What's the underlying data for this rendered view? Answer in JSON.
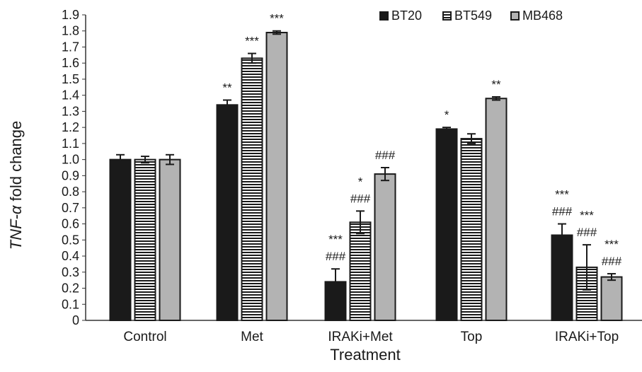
{
  "chart_data": {
    "type": "bar",
    "title": "",
    "xlabel": "Treatment",
    "ylabel": "TNF-α fold change",
    "ylabel_prefix": "TNF-α",
    "ylabel_suffix": " fold change",
    "ylim": [
      0,
      1.9
    ],
    "ytick_step": 0.1,
    "grid": false,
    "legend_position": "top-right",
    "categories": [
      "Control",
      "Met",
      "IRAKi+Met",
      "Top",
      "IRAKi+Top"
    ],
    "series": [
      {
        "name": "BT20",
        "pattern": "solid",
        "color": "#1a1a1a",
        "values": [
          1.0,
          1.34,
          0.24,
          1.19,
          0.53
        ],
        "errors": [
          0.03,
          0.03,
          0.08,
          0.01,
          0.07
        ],
        "annotations": [
          [],
          [
            "**"
          ],
          [
            "***",
            "###"
          ],
          [
            "*"
          ],
          [
            "***",
            "###"
          ]
        ]
      },
      {
        "name": "BT549",
        "pattern": "horizontal-stripes",
        "color": "#1a1a1a",
        "values": [
          1.0,
          1.63,
          0.61,
          1.13,
          0.33
        ],
        "errors": [
          0.02,
          0.03,
          0.07,
          0.03,
          0.14
        ],
        "annotations": [
          [],
          [
            "***"
          ],
          [
            "*",
            "###"
          ],
          [],
          [
            "***",
            "###"
          ]
        ]
      },
      {
        "name": "MB468",
        "pattern": "gray-fill",
        "color": "#b3b3b3",
        "values": [
          1.0,
          1.79,
          0.91,
          1.38,
          0.27
        ],
        "errors": [
          0.03,
          0.01,
          0.04,
          0.01,
          0.02
        ],
        "annotations": [
          [],
          [
            "***"
          ],
          [
            "###"
          ],
          [
            "**"
          ],
          [
            "***",
            "###"
          ]
        ]
      }
    ]
  }
}
